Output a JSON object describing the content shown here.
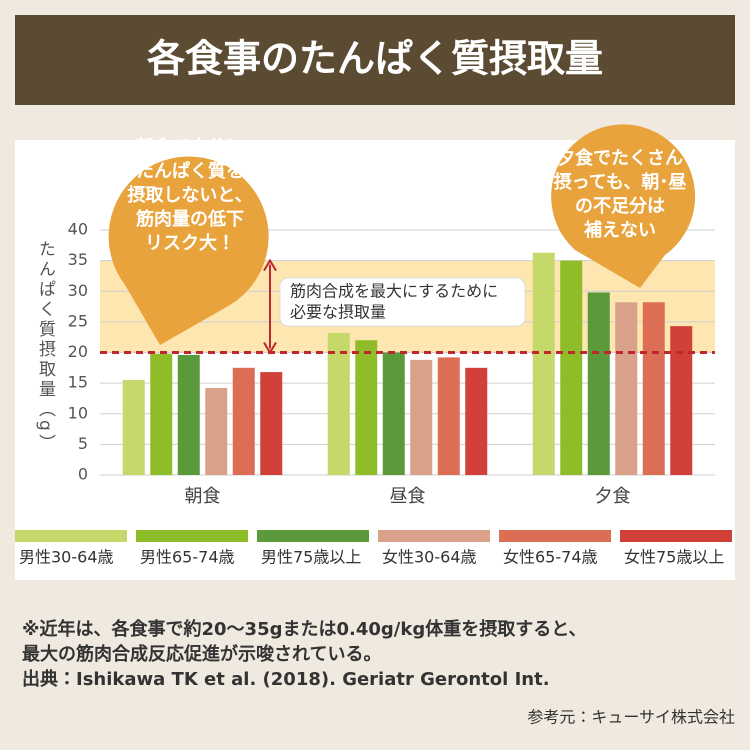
{
  "chart_data": {
    "type": "bar",
    "title": "各食事のたんぱく質摂取量",
    "y_label": "たんぱく質摂取量（g）",
    "categories": [
      "朝食",
      "昼食",
      "夕食"
    ],
    "series": [
      {
        "name": "男性30-64歳",
        "color": "#c5d86a",
        "values": [
          15.5,
          23.2,
          36.3
        ]
      },
      {
        "name": "男性65-74歳",
        "color": "#8fbd2a",
        "values": [
          19.8,
          22.0,
          35.0
        ]
      },
      {
        "name": "男性75歳以上",
        "color": "#5a9a3a",
        "values": [
          19.6,
          20.0,
          29.8
        ]
      },
      {
        "name": "女性30-64歳",
        "color": "#d9a08a",
        "values": [
          14.2,
          18.8,
          28.2
        ]
      },
      {
        "name": "女性65-74歳",
        "color": "#dc6e55",
        "values": [
          17.5,
          19.2,
          28.2
        ]
      },
      {
        "name": "女性75歳以上",
        "color": "#d2403a",
        "values": [
          16.8,
          17.5,
          24.3
        ]
      }
    ],
    "ylim": [
      0,
      40
    ],
    "yticks": [
      0,
      5,
      10,
      15,
      20,
      25,
      30,
      35,
      40
    ],
    "grid": true,
    "target_range": [
      20,
      35
    ],
    "target_label": [
      "筋肉合成を最大にするために",
      "必要な摂取量"
    ],
    "callouts": [
      [
        "朝食で十分に",
        "たんぱく質を",
        "摂取しないと、",
        "筋肉量の低下",
        "リスク大！"
      ],
      [
        "夕食でたくさん",
        "摂っても、朝･昼",
        "の不足分は",
        "補えない"
      ]
    ]
  },
  "notes": [
    "※近年は、各食事で約20～35gまたは0.40g/kg体重を摂取すると、",
    "最大の筋肉合成反応促進が示唆されている。",
    "出典：Ishikawa TK et al. (2018). Geriatr Gerontol Int."
  ],
  "source": "参考元：キューサイ株式会社"
}
